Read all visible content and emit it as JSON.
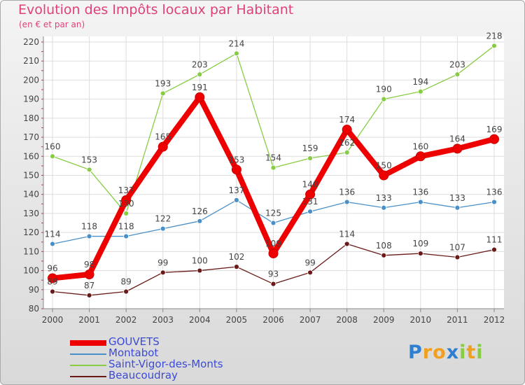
{
  "chart_data": {
    "type": "line",
    "title": "Evolution des Impôts locaux par Habitant",
    "subtitle": "(en € et par an)",
    "xlabel": "",
    "ylabel": "",
    "categories": [
      "2000",
      "2001",
      "2002",
      "2003",
      "2004",
      "2005",
      "2006",
      "2007",
      "2008",
      "2009",
      "2010",
      "2011",
      "2012"
    ],
    "ylim": [
      80,
      220
    ],
    "yticks": [
      80,
      90,
      100,
      110,
      120,
      130,
      140,
      150,
      160,
      170,
      180,
      190,
      200,
      210,
      220
    ],
    "grid": true,
    "series": [
      {
        "name": "GOUVETS",
        "color": "#ee0000",
        "values": [
          96,
          98,
          137,
          165,
          191,
          153,
          109,
          140,
          174,
          150,
          160,
          164,
          169
        ]
      },
      {
        "name": "Montabot",
        "color": "#4a90c8",
        "values": [
          114,
          118,
          118,
          122,
          126,
          137,
          125,
          131,
          136,
          133,
          136,
          133,
          136
        ]
      },
      {
        "name": "Saint-Vigor-des-Monts",
        "color": "#88cc44",
        "values": [
          160,
          153,
          130,
          193,
          203,
          214,
          154,
          159,
          162,
          190,
          194,
          203,
          218
        ]
      },
      {
        "name": "Beaucoudray",
        "color": "#6b1a1a",
        "values": [
          89,
          87,
          89,
          99,
          100,
          102,
          93,
          99,
          114,
          108,
          109,
          107,
          111
        ]
      }
    ],
    "legend_position": "bottom-left"
  },
  "logo": {
    "letters": [
      {
        "ch": "P",
        "color": "#2e7fd0"
      },
      {
        "ch": "r",
        "color": "#f0a020"
      },
      {
        "ch": "o",
        "color": "#f0a020"
      },
      {
        "ch": "x",
        "color": "#2e7fd0"
      },
      {
        "ch": "i",
        "color": "#88cc44"
      },
      {
        "ch": "t",
        "color": "#f0a020"
      },
      {
        "ch": "i",
        "color": "#88cc44"
      }
    ]
  }
}
